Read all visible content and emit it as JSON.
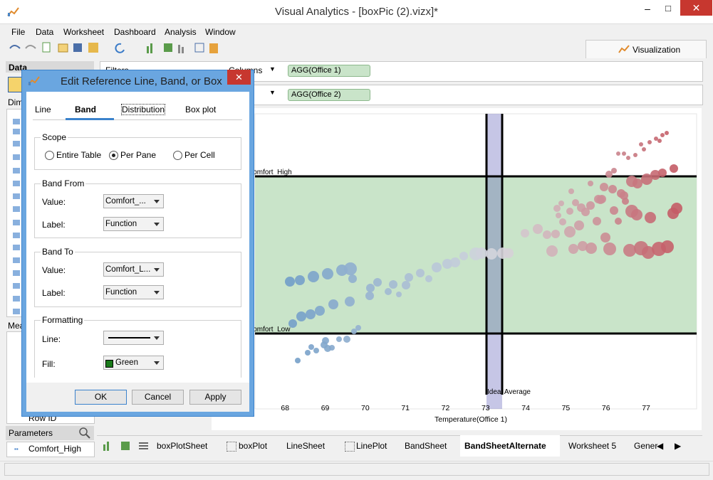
{
  "window": {
    "title": "Visual Analytics - [boxPic (2).vizx]*"
  },
  "menu": [
    "File",
    "Data",
    "Worksheet",
    "Dashboard",
    "Analysis",
    "Window"
  ],
  "toolbar": {
    "visualization_tab": "Visualization"
  },
  "side_panel": {
    "data_header": "Data",
    "dimensions_label": "Dime",
    "measures_label": "Mea",
    "measure_item": "Row ID",
    "parameters_header": "Parameters",
    "parameter_item": "Comfort_High"
  },
  "shelves": {
    "filters": "Filters",
    "columns_label": "Columns",
    "columns_pill": "AGG(Office 1)",
    "rows_pill": "AGG(Office 2)"
  },
  "chart": {
    "xlim": [
      67.25,
      78.26
    ],
    "xticks": [
      68,
      69,
      70,
      71,
      72,
      73,
      74,
      75,
      76,
      77
    ],
    "x_label": "Temperature(Office 1)",
    "band_high_label": "Comfort_High",
    "band_low_label": "Comfort_Low",
    "line_label": "Ideal Average"
  },
  "dialog": {
    "title": "Edit Reference Line, Band, or Box",
    "tabs": [
      "Line",
      "Band",
      "Distribution",
      "Box plot"
    ],
    "scope": {
      "label": "Scope",
      "options": [
        "Entire Table",
        "Per Pane",
        "Per Cell"
      ]
    },
    "band_from": {
      "label": "Band From",
      "value_label": "Value:",
      "value": "Comfort_...",
      "label_label": "Label:",
      "label_value": "Function"
    },
    "band_to": {
      "label": "Band To",
      "value_label": "Value:",
      "value": "Comfort_L...",
      "label_label": "Label:",
      "label_value": "Function"
    },
    "formatting": {
      "label": "Formatting",
      "line_label": "Line:",
      "fill_label": "Fill:",
      "fill_value": "Green"
    },
    "buttons": [
      "OK",
      "Cancel",
      "Apply"
    ]
  },
  "sheet_tabs": [
    "boxPlotSheet",
    "boxPlot",
    "LineSheet",
    "LinePlot",
    "BandSheet",
    "BandSheetAlternate",
    "Worksheet 5",
    "Gener"
  ]
}
